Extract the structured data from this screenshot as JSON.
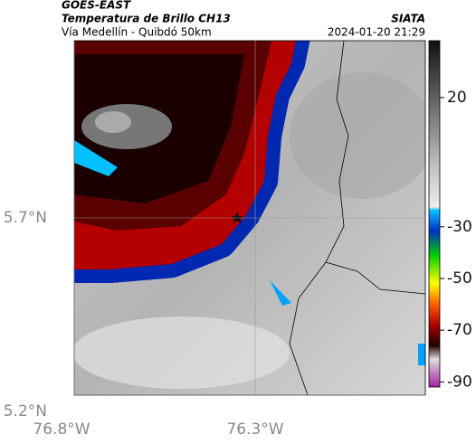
{
  "header": {
    "source": "GOES-EAST",
    "title": "Temperatura de Brillo CH13",
    "subtitle": "Vía Medellín - Quibdó 50km",
    "org": "SIATA",
    "datetime": "2024-01-20 21:29"
  },
  "map": {
    "xlim": [
      -76.8,
      -75.83
    ],
    "ylim": [
      5.2,
      6.2
    ],
    "xticks": [
      {
        "value": -76.8,
        "label": "76.8°W"
      },
      {
        "value": -76.3,
        "label": "76.3°W"
      }
    ],
    "yticks": [
      {
        "value": 5.7,
        "label": "5.7°N"
      },
      {
        "value": 5.2,
        "label": "5.2°N"
      }
    ]
  },
  "colorbar": {
    "lim": [
      42,
      -92
    ],
    "ticks": [
      20,
      -30,
      -50,
      -70,
      -90
    ]
  }
}
